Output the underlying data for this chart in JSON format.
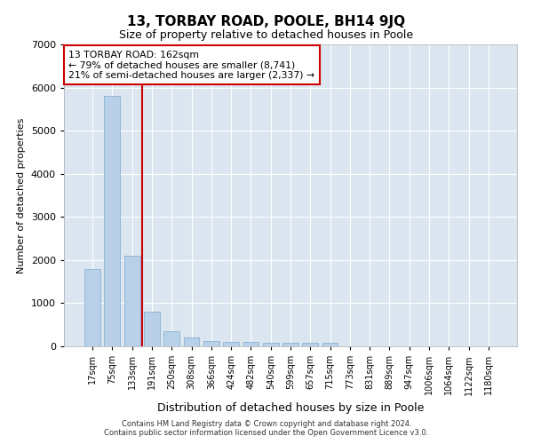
{
  "title": "13, TORBAY ROAD, POOLE, BH14 9JQ",
  "subtitle": "Size of property relative to detached houses in Poole",
  "xlabel": "Distribution of detached houses by size in Poole",
  "ylabel": "Number of detached properties",
  "bar_color": "#b8d0e8",
  "bar_edge_color": "#7aaad0",
  "categories": [
    "17sqm",
    "75sqm",
    "133sqm",
    "191sqm",
    "250sqm",
    "308sqm",
    "366sqm",
    "424sqm",
    "482sqm",
    "540sqm",
    "599sqm",
    "657sqm",
    "715sqm",
    "773sqm",
    "831sqm",
    "889sqm",
    "947sqm",
    "1006sqm",
    "1064sqm",
    "1122sqm",
    "1180sqm"
  ],
  "values": [
    1800,
    5800,
    2100,
    800,
    350,
    200,
    130,
    110,
    110,
    85,
    85,
    85,
    85,
    0,
    0,
    0,
    0,
    0,
    0,
    0,
    0
  ],
  "vline_color": "#cc0000",
  "annotation_text": "13 TORBAY ROAD: 162sqm\n← 79% of detached houses are smaller (8,741)\n21% of semi-detached houses are larger (2,337) →",
  "annotation_box_color": "#cc0000",
  "ylim": [
    0,
    7000
  ],
  "background_color": "#dce6f0",
  "footer_line1": "Contains HM Land Registry data © Crown copyright and database right 2024.",
  "footer_line2": "Contains public sector information licensed under the Open Government Licence v3.0."
}
